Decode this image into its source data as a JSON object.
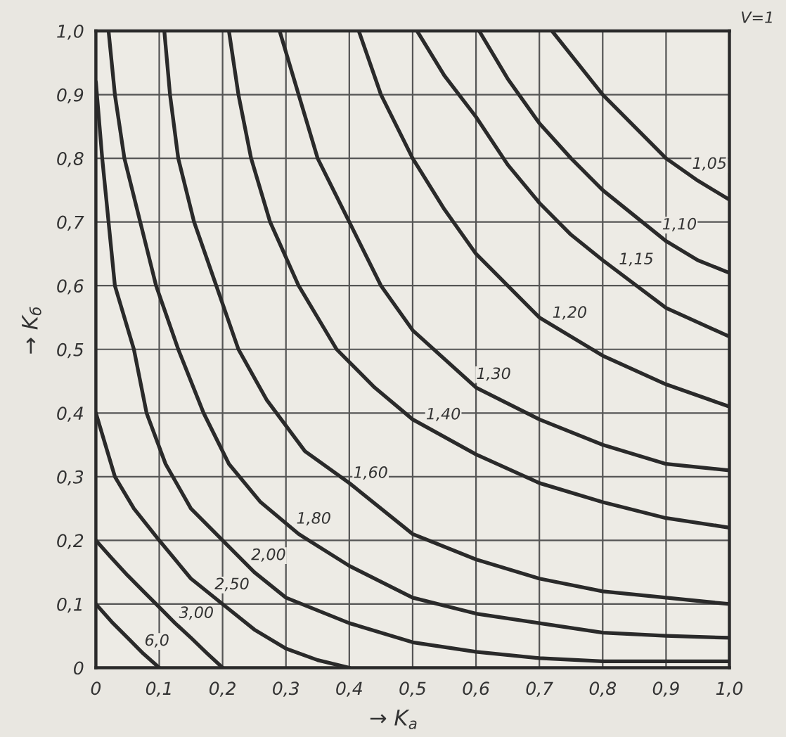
{
  "chart_data": {
    "type": "line",
    "xlabel": "→ K$_{a}$",
    "ylabel": "→ K$_{б}$",
    "xlim": [
      0,
      1
    ],
    "ylim": [
      0,
      1
    ],
    "xticks": [
      {
        "value": 0,
        "label": "0"
      },
      {
        "value": 0.1,
        "label": "0,1"
      },
      {
        "value": 0.2,
        "label": "0,2"
      },
      {
        "value": 0.3,
        "label": "0,3"
      },
      {
        "value": 0.4,
        "label": "0,4"
      },
      {
        "value": 0.5,
        "label": "0,5"
      },
      {
        "value": 0.6,
        "label": "0,6"
      },
      {
        "value": 0.7,
        "label": "0,7"
      },
      {
        "value": 0.8,
        "label": "0,8"
      },
      {
        "value": 0.9,
        "label": "0,9"
      },
      {
        "value": 1,
        "label": "1,0"
      }
    ],
    "yticks": [
      {
        "value": 0,
        "label": "0"
      },
      {
        "value": 0.1,
        "label": "0,1"
      },
      {
        "value": 0.2,
        "label": "0,2"
      },
      {
        "value": 0.3,
        "label": "0,3"
      },
      {
        "value": 0.4,
        "label": "0,4"
      },
      {
        "value": 0.5,
        "label": "0,5"
      },
      {
        "value": 0.6,
        "label": "0,6"
      },
      {
        "value": 0.7,
        "label": "0,7"
      },
      {
        "value": 0.8,
        "label": "0,8"
      },
      {
        "value": 0.9,
        "label": "0,9"
      },
      {
        "value": 1,
        "label": "1,0"
      }
    ],
    "grid": true,
    "series": [
      {
        "name": "1,05",
        "color": "#2a2a2a",
        "x": [
          0.72,
          0.76,
          0.8,
          0.85,
          0.9,
          0.95,
          1.0
        ],
        "values": [
          1.0,
          0.95,
          0.9,
          0.85,
          0.8,
          0.765,
          0.735
        ]
      },
      {
        "name": "1,10",
        "color": "#2a2a2a",
        "x": [
          0.605,
          0.65,
          0.7,
          0.75,
          0.8,
          0.85,
          0.9,
          0.95,
          1.0
        ],
        "values": [
          1.0,
          0.925,
          0.855,
          0.8,
          0.75,
          0.71,
          0.67,
          0.64,
          0.62
        ]
      },
      {
        "name": "1,15",
        "color": "#2a2a2a",
        "x": [
          0.507,
          0.55,
          0.6,
          0.65,
          0.7,
          0.75,
          0.8,
          0.9,
          1.0
        ],
        "values": [
          1.0,
          0.93,
          0.865,
          0.79,
          0.73,
          0.68,
          0.64,
          0.565,
          0.52
        ]
      },
      {
        "name": "1,20",
        "color": "#2a2a2a",
        "x": [
          0.415,
          0.45,
          0.5,
          0.55,
          0.6,
          0.7,
          0.8,
          0.9,
          1.0
        ],
        "values": [
          1.0,
          0.9,
          0.8,
          0.72,
          0.65,
          0.55,
          0.49,
          0.445,
          0.41
        ]
      },
      {
        "name": "1,30",
        "color": "#2a2a2a",
        "x": [
          0.29,
          0.32,
          0.35,
          0.4,
          0.45,
          0.5,
          0.6,
          0.7,
          0.8,
          0.9,
          1.0
        ],
        "values": [
          1.0,
          0.9,
          0.8,
          0.7,
          0.6,
          0.53,
          0.44,
          0.39,
          0.35,
          0.32,
          0.31
        ]
      },
      {
        "name": "1,40",
        "color": "#2a2a2a",
        "x": [
          0.21,
          0.225,
          0.245,
          0.275,
          0.32,
          0.38,
          0.44,
          0.5,
          0.6,
          0.7,
          0.8,
          0.9,
          1.0
        ],
        "values": [
          1.0,
          0.9,
          0.8,
          0.7,
          0.6,
          0.5,
          0.44,
          0.39,
          0.335,
          0.29,
          0.26,
          0.235,
          0.22
        ]
      },
      {
        "name": "1,60",
        "color": "#2a2a2a",
        "x": [
          0.108,
          0.117,
          0.13,
          0.155,
          0.19,
          0.225,
          0.27,
          0.33,
          0.4,
          0.5,
          0.6,
          0.7,
          0.8,
          0.9,
          1.0
        ],
        "values": [
          1.0,
          0.9,
          0.8,
          0.7,
          0.6,
          0.5,
          0.42,
          0.34,
          0.29,
          0.21,
          0.17,
          0.14,
          0.12,
          0.11,
          0.1
        ]
      },
      {
        "name": "1,80",
        "color": "#2a2a2a",
        "x": [
          0.02,
          0.03,
          0.045,
          0.07,
          0.095,
          0.13,
          0.17,
          0.21,
          0.26,
          0.32,
          0.4,
          0.5,
          0.6,
          0.7,
          0.8,
          0.9,
          1.0
        ],
        "values": [
          1.0,
          0.9,
          0.8,
          0.7,
          0.6,
          0.5,
          0.4,
          0.32,
          0.26,
          0.21,
          0.16,
          0.11,
          0.085,
          0.07,
          0.055,
          0.05,
          0.047
        ]
      },
      {
        "name": "2,00",
        "color": "#2a2a2a",
        "x": [
          0,
          0.01,
          0.02,
          0.03,
          0.06,
          0.08,
          0.11,
          0.15,
          0.2,
          0.25,
          0.3,
          0.4,
          0.5,
          0.6,
          0.7,
          0.8,
          0.9,
          1.0
        ],
        "values": [
          0.92,
          0.8,
          0.7,
          0.6,
          0.5,
          0.4,
          0.32,
          0.25,
          0.2,
          0.15,
          0.11,
          0.07,
          0.04,
          0.025,
          0.015,
          0.01,
          0.01,
          0.01
        ]
      },
      {
        "name": "2,50",
        "color": "#2a2a2a",
        "x": [
          0,
          0.03,
          0.06,
          0.1,
          0.15,
          0.2,
          0.25,
          0.3,
          0.35,
          0.4
        ],
        "values": [
          0.4,
          0.3,
          0.25,
          0.2,
          0.14,
          0.1,
          0.06,
          0.03,
          0.012,
          0
        ]
      },
      {
        "name": "3,00",
        "color": "#2a2a2a",
        "x": [
          0,
          0.025,
          0.05,
          0.075,
          0.1,
          0.125,
          0.15,
          0.175,
          0.2
        ],
        "values": [
          0.2,
          0.172,
          0.145,
          0.12,
          0.095,
          0.07,
          0.047,
          0.023,
          0
        ]
      },
      {
        "name": "6,0",
        "color": "#2a2a2a",
        "x": [
          0,
          0.025,
          0.05,
          0.075,
          0.1
        ],
        "values": [
          0.1,
          0.072,
          0.047,
          0.022,
          0
        ]
      }
    ],
    "annotations": [
      "V=1"
    ]
  }
}
